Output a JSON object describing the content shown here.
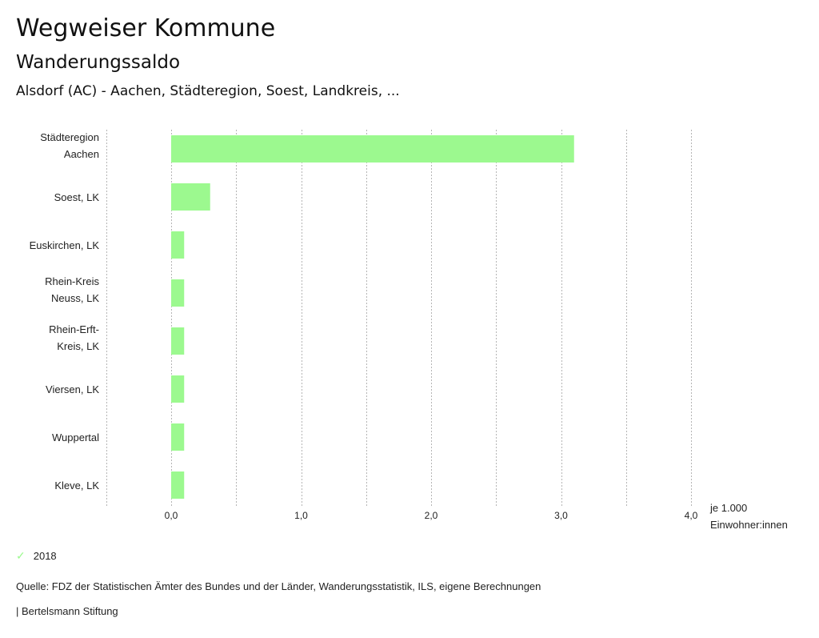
{
  "header": {
    "title": "Wegweiser Kommune",
    "subtitle": "Wanderungssaldo",
    "regions": "Alsdorf (AC) - Aachen, Städteregion, Soest, Landkreis, ..."
  },
  "chart_data": {
    "type": "bar",
    "orientation": "horizontal",
    "categories": [
      [
        "Städteregion",
        "Aachen"
      ],
      [
        "Soest, LK"
      ],
      [
        "Euskirchen, LK"
      ],
      [
        "Rhein-Kreis",
        "Neuss, LK"
      ],
      [
        "Rhein-Erft-",
        "Kreis, LK"
      ],
      [
        "Viersen, LK"
      ],
      [
        "Wuppertal"
      ],
      [
        "Kleve, LK"
      ]
    ],
    "series": [
      {
        "name": "2018",
        "values": [
          3.1,
          0.3,
          0.1,
          0.1,
          0.1,
          0.1,
          0.1,
          0.1
        ],
        "color": "#9cf98f"
      }
    ],
    "xlim": [
      -0.5,
      4.0
    ],
    "xticks": [
      0,
      1,
      2,
      3,
      4
    ],
    "xtick_labels": [
      "0,0",
      "1,0",
      "2,0",
      "3,0",
      "4,0"
    ],
    "gridlines": [
      -0.5,
      0,
      0.5,
      1,
      1.5,
      2,
      2.5,
      3,
      3.5,
      4
    ],
    "grid": true,
    "xlabel": [
      "je 1.000",
      "Einwohner:innen"
    ],
    "legend_position": "bottom-left"
  },
  "legend": {
    "label": "2018",
    "icon": "check-icon",
    "color": "#9cf98f"
  },
  "footer": {
    "source": "Quelle: FDZ der Statistischen Ämter des Bundes und der Länder, Wanderungsstatistik, ILS, eigene Berechnungen",
    "brand": "| Bertelsmann Stiftung"
  }
}
